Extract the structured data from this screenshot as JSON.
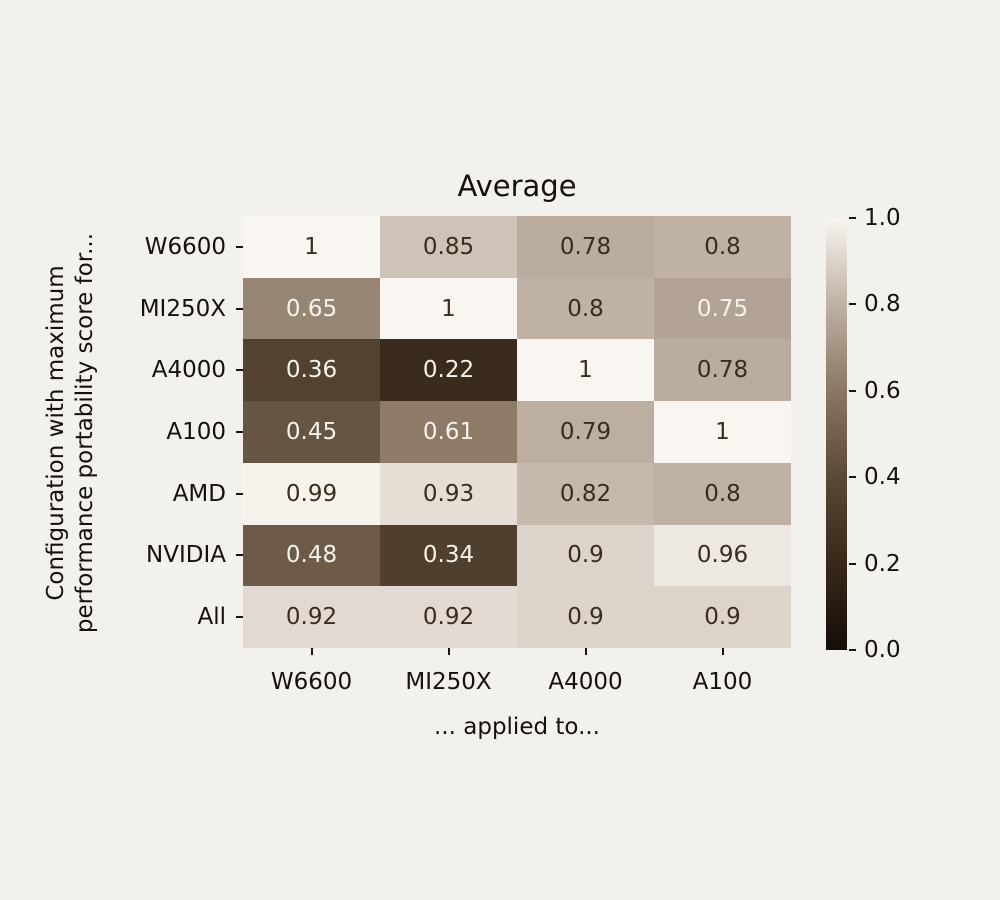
{
  "background": "#f3f1ee",
  "text_color": "#17110c",
  "chart_data": {
    "type": "heatmap",
    "title": "Average",
    "xlabel": "... applied to...",
    "ylabel": "Configuration with maximum performance portability score for...",
    "ylabel_lines": [
      "Configuration with maximum",
      "performance portability score for..."
    ],
    "columns": [
      "W6600",
      "MI250X",
      "A4000",
      "A100"
    ],
    "rows": [
      "W6600",
      "MI250X",
      "A4000",
      "A100",
      "AMD",
      "NVIDIA",
      "All"
    ],
    "values": [
      [
        1,
        0.85,
        0.78,
        0.8
      ],
      [
        0.65,
        1,
        0.8,
        0.75
      ],
      [
        0.36,
        0.22,
        1,
        0.78
      ],
      [
        0.45,
        0.61,
        0.79,
        1
      ],
      [
        0.99,
        0.93,
        0.82,
        0.8
      ],
      [
        0.48,
        0.34,
        0.9,
        0.96
      ],
      [
        0.92,
        0.92,
        0.9,
        0.9
      ]
    ],
    "colorbar": {
      "min": 0.0,
      "max": 1.0,
      "tick_labels": [
        "1.0",
        "0.8",
        "0.6",
        "0.4",
        "0.2",
        "0.0"
      ],
      "tick_values": [
        1.0,
        0.8,
        0.6,
        0.4,
        0.2,
        0.0
      ]
    },
    "colormap": {
      "anchors": [
        {
          "v": 0.0,
          "c": "#150e08"
        },
        {
          "v": 0.2,
          "c": "#382819"
        },
        {
          "v": 0.4,
          "c": "#5a4936"
        },
        {
          "v": 0.6,
          "c": "#8a7764"
        },
        {
          "v": 0.8,
          "c": "#bfb2a4"
        },
        {
          "v": 1.0,
          "c": "#f9f5f0"
        }
      ],
      "annot_dark_color": "#3b2c1e",
      "annot_light_color": "#f6f2ec",
      "annot_dark_threshold": 0.76
    }
  }
}
